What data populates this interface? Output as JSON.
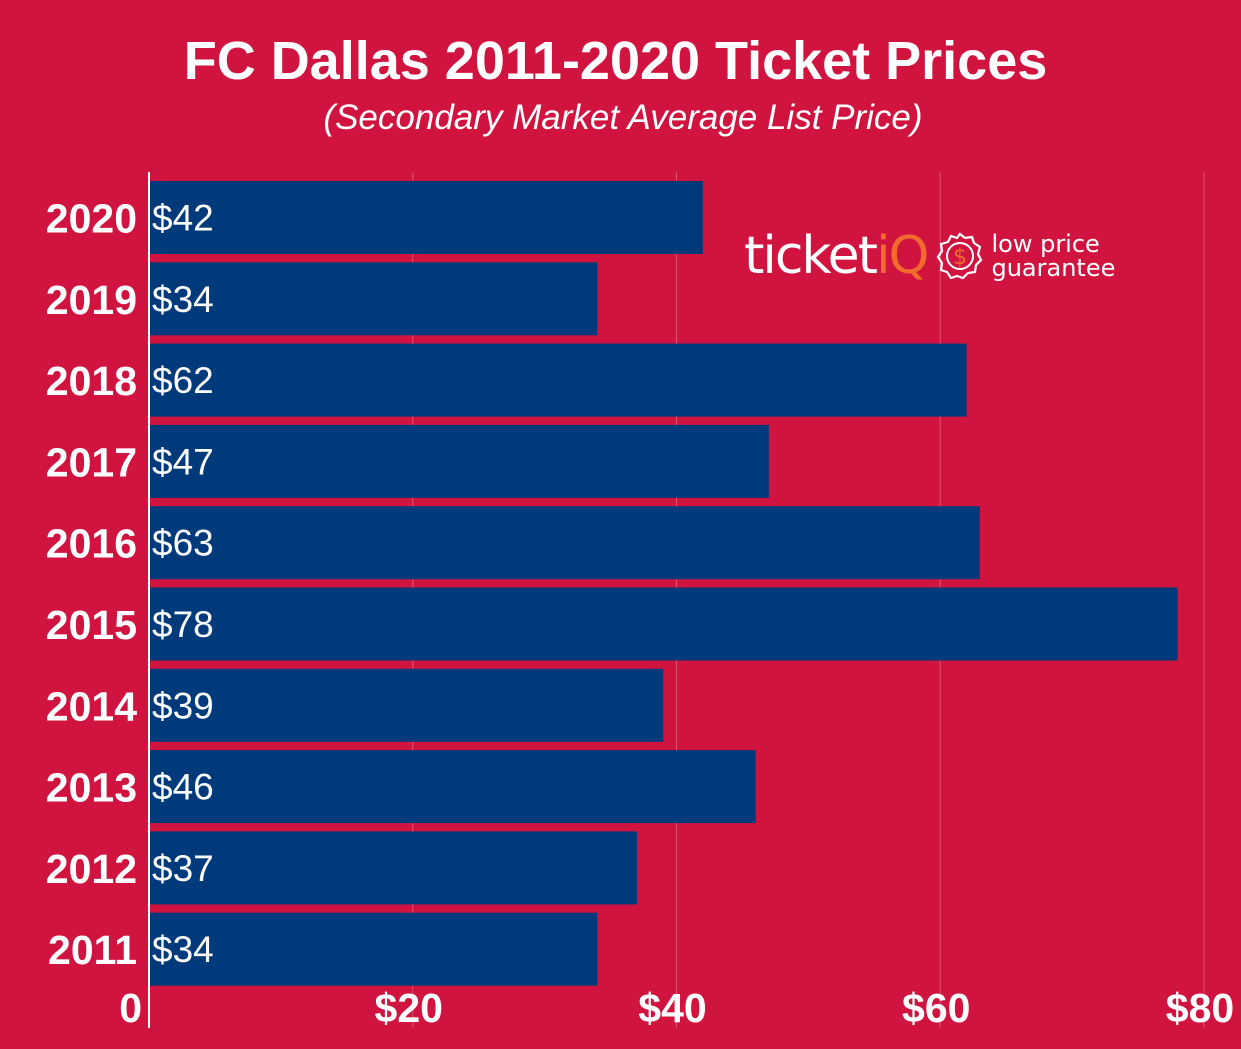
{
  "chart_data": {
    "type": "bar",
    "orientation": "horizontal",
    "title": "FC Dallas 2011-2020 Ticket Prices",
    "subtitle": "(Secondary Market Average List Price)",
    "categories": [
      "2020",
      "2019",
      "2018",
      "2017",
      "2016",
      "2015",
      "2014",
      "2013",
      "2012",
      "2011"
    ],
    "values": [
      42,
      34,
      62,
      47,
      63,
      78,
      39,
      46,
      37,
      34
    ],
    "data_labels": [
      "$42",
      "$34",
      "$62",
      "$47",
      "$63",
      "$78",
      "$39",
      "$46",
      "$37",
      "$34"
    ],
    "x_ticks": [
      0,
      20,
      40,
      60,
      80
    ],
    "x_tick_labels": [
      "0",
      "$20",
      "$40",
      "$60",
      "$80"
    ],
    "xlim": [
      0,
      80
    ],
    "grid": true,
    "xlabel": "",
    "ylabel": ""
  },
  "colors": {
    "background": "#D0143F",
    "bar": "#003A7A",
    "text": "#FFFFFF",
    "gridline": "#E05070",
    "logo_accent": "#F26A2E"
  },
  "logo": {
    "word_main": "ticket",
    "word_accent": "iQ",
    "tagline_line1": "low price",
    "tagline_line2": "guarantee",
    "seal_symbol": "$",
    "seal_icon": "shield-dollar-icon"
  }
}
